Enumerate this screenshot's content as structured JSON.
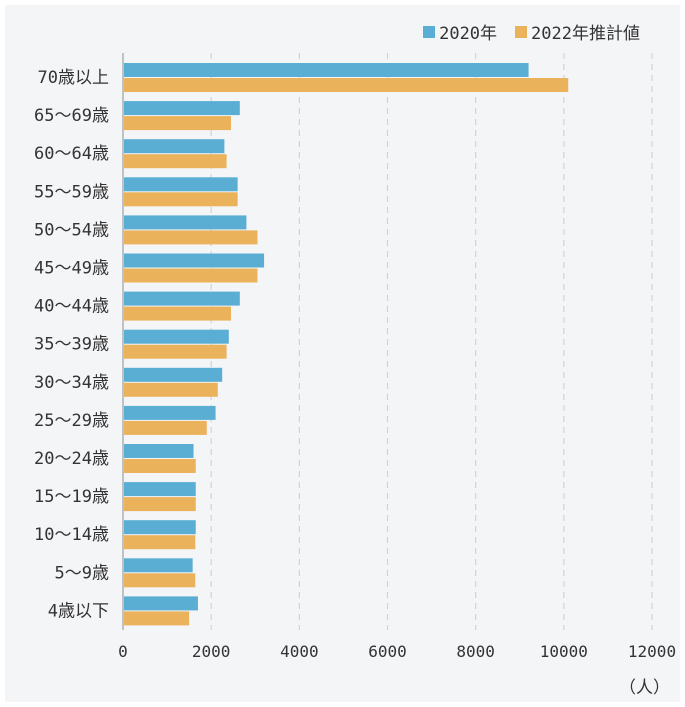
{
  "chart_data": {
    "type": "bar",
    "orientation": "horizontal",
    "categories": [
      "70歳以上",
      "65〜69歳",
      "60〜64歳",
      "55〜59歳",
      "50〜54歳",
      "45〜49歳",
      "40〜44歳",
      "35〜39歳",
      "30〜34歳",
      "25〜29歳",
      "20〜24歳",
      "15〜19歳",
      "10〜14歳",
      "5〜9歳",
      "4歳以下"
    ],
    "series": [
      {
        "name": "2020年",
        "color": "#5aaed3",
        "values": [
          9200,
          2650,
          2300,
          2600,
          2800,
          3200,
          2650,
          2400,
          2250,
          2100,
          1600,
          1650,
          1650,
          1580,
          1700
        ]
      },
      {
        "name": "2022年推計値",
        "color": "#ebb25c",
        "values": [
          10100,
          2450,
          2350,
          2600,
          3050,
          3050,
          2450,
          2350,
          2150,
          1900,
          1650,
          1650,
          1640,
          1640,
          1500
        ]
      }
    ],
    "xticks": [
      0,
      2000,
      4000,
      6000,
      8000,
      10000,
      12000
    ],
    "xlim": [
      0,
      12000
    ],
    "unit_label": "（人）",
    "grid": true,
    "legend_position": "top-right"
  }
}
